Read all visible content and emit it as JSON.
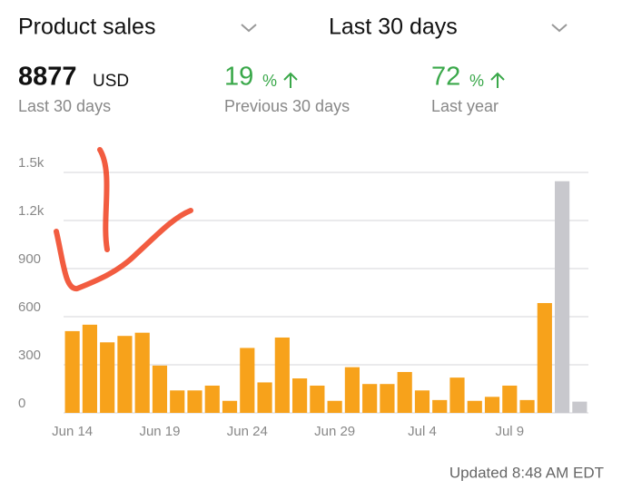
{
  "header": {
    "metric": "Product sales",
    "period": "Last 30 days"
  },
  "stats": [
    {
      "value": 8877,
      "unit": "USD",
      "label": "Last 30 days"
    },
    {
      "value": 19,
      "unit": "%",
      "label": "Previous 30 days"
    },
    {
      "value": 72,
      "unit": "%",
      "label": "Last year"
    }
  ],
  "chart_data": {
    "type": "bar",
    "categories": [
      "Jun 14",
      null,
      null,
      null,
      null,
      "Jun 19",
      null,
      null,
      null,
      null,
      "Jun 24",
      null,
      null,
      null,
      null,
      "Jun 29",
      null,
      null,
      null,
      null,
      "Jul 4",
      null,
      null,
      null,
      null,
      "Jul 9",
      null,
      null,
      null,
      null
    ],
    "values": [
      510,
      550,
      440,
      480,
      500,
      295,
      140,
      140,
      170,
      75,
      405,
      190,
      470,
      215,
      170,
      75,
      285,
      180,
      180,
      255,
      140,
      80,
      220,
      75,
      100,
      170,
      80,
      685,
      1445,
      70
    ],
    "colors": [
      "#f7a21b",
      "#f7a21b",
      "#f7a21b",
      "#f7a21b",
      "#f7a21b",
      "#f7a21b",
      "#f7a21b",
      "#f7a21b",
      "#f7a21b",
      "#f7a21b",
      "#f7a21b",
      "#f7a21b",
      "#f7a21b",
      "#f7a21b",
      "#f7a21b",
      "#f7a21b",
      "#f7a21b",
      "#f7a21b",
      "#f7a21b",
      "#f7a21b",
      "#f7a21b",
      "#f7a21b",
      "#f7a21b",
      "#f7a21b",
      "#f7a21b",
      "#f7a21b",
      "#f7a21b",
      "#f7a21b",
      "#c8c8cd",
      "#c8c8cd"
    ],
    "ylim": [
      0,
      1500
    ],
    "yticks": [
      0,
      300,
      600,
      900,
      {
        "value": 1200,
        "label": "1.2k"
      },
      {
        "value": 1500,
        "label": "1.5k"
      }
    ],
    "grid": true
  },
  "footer": "Updated 8:48 AM EDT"
}
